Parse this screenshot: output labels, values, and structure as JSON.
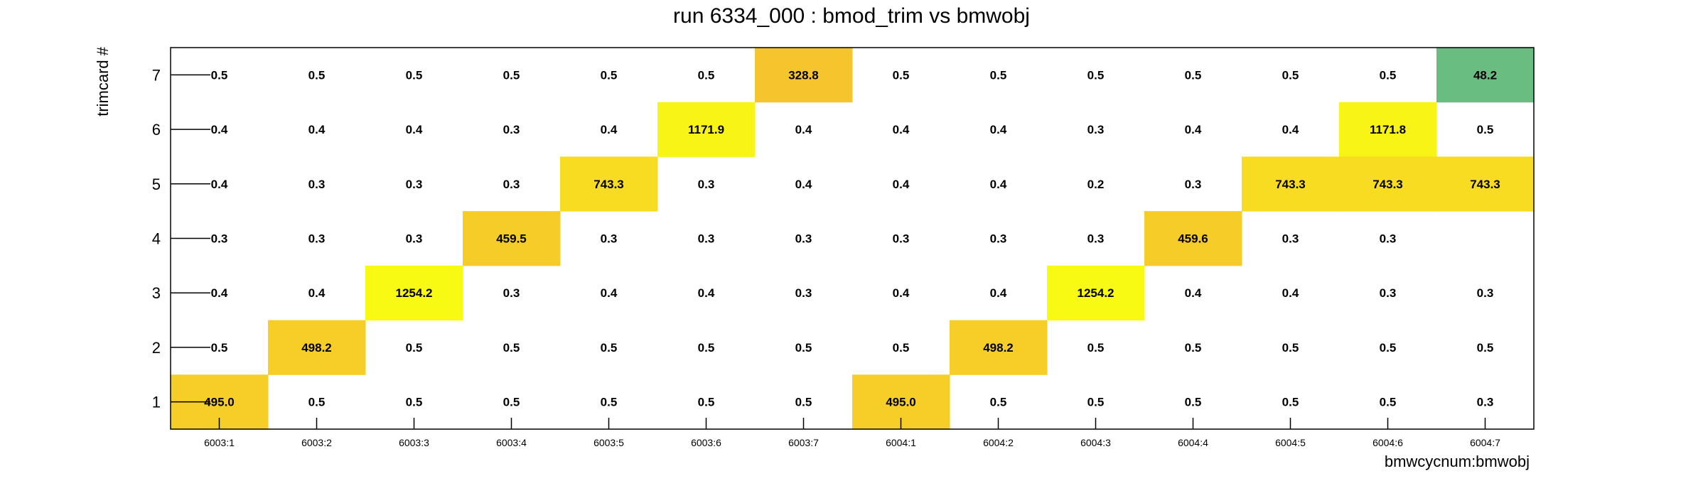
{
  "chart_data": {
    "type": "heatmap",
    "title": "run 6334_000 : bmod_trim vs bmwobj",
    "xlabel": "bmwcycnum:bmwobj",
    "ylabel": "trimcard #",
    "x_categories": [
      "6003:1",
      "6003:2",
      "6003:3",
      "6003:4",
      "6003:5",
      "6003:6",
      "6003:7",
      "6004:1",
      "6004:2",
      "6004:3",
      "6004:4",
      "6004:5",
      "6004:6",
      "6004:7"
    ],
    "y_categories": [
      "1",
      "2",
      "3",
      "4",
      "5",
      "6",
      "7"
    ],
    "grid": false,
    "legend": "none",
    "rows": [
      {
        "y": "7",
        "values": [
          0.5,
          0.5,
          0.5,
          0.5,
          0.5,
          0.5,
          328.8,
          0.5,
          0.5,
          0.5,
          0.5,
          0.5,
          0.5,
          48.2
        ]
      },
      {
        "y": "6",
        "values": [
          0.4,
          0.4,
          0.4,
          0.3,
          0.4,
          1171.9,
          0.4,
          0.4,
          0.4,
          0.3,
          0.4,
          0.4,
          1171.8,
          0.5
        ]
      },
      {
        "y": "5",
        "values": [
          0.4,
          0.3,
          0.3,
          0.3,
          743.3,
          0.3,
          0.4,
          0.4,
          0.4,
          0.2,
          0.3,
          743.3,
          743.3,
          743.3
        ]
      },
      {
        "y": "4",
        "values": [
          0.3,
          0.3,
          0.3,
          459.5,
          0.3,
          0.3,
          0.3,
          0.3,
          0.3,
          0.3,
          459.6,
          0.3,
          0.3,
          null
        ]
      },
      {
        "y": "3",
        "values": [
          0.4,
          0.4,
          1254.2,
          0.3,
          0.4,
          0.4,
          0.3,
          0.4,
          0.4,
          1254.2,
          0.4,
          0.4,
          0.3,
          0.3
        ]
      },
      {
        "y": "2",
        "values": [
          0.5,
          498.2,
          0.5,
          0.5,
          0.5,
          0.5,
          0.5,
          0.5,
          498.2,
          0.5,
          0.5,
          0.5,
          0.5,
          0.5
        ]
      },
      {
        "y": "1",
        "values": [
          495.0,
          0.5,
          0.5,
          0.5,
          0.5,
          0.5,
          0.5,
          495.0,
          0.5,
          0.5,
          0.5,
          0.5,
          0.5,
          0.3
        ]
      }
    ],
    "colors": {
      "low": "#4fbc91",
      "mid": "#f6c32c",
      "high": "#f8fa14",
      "frame": "#000000"
    }
  }
}
